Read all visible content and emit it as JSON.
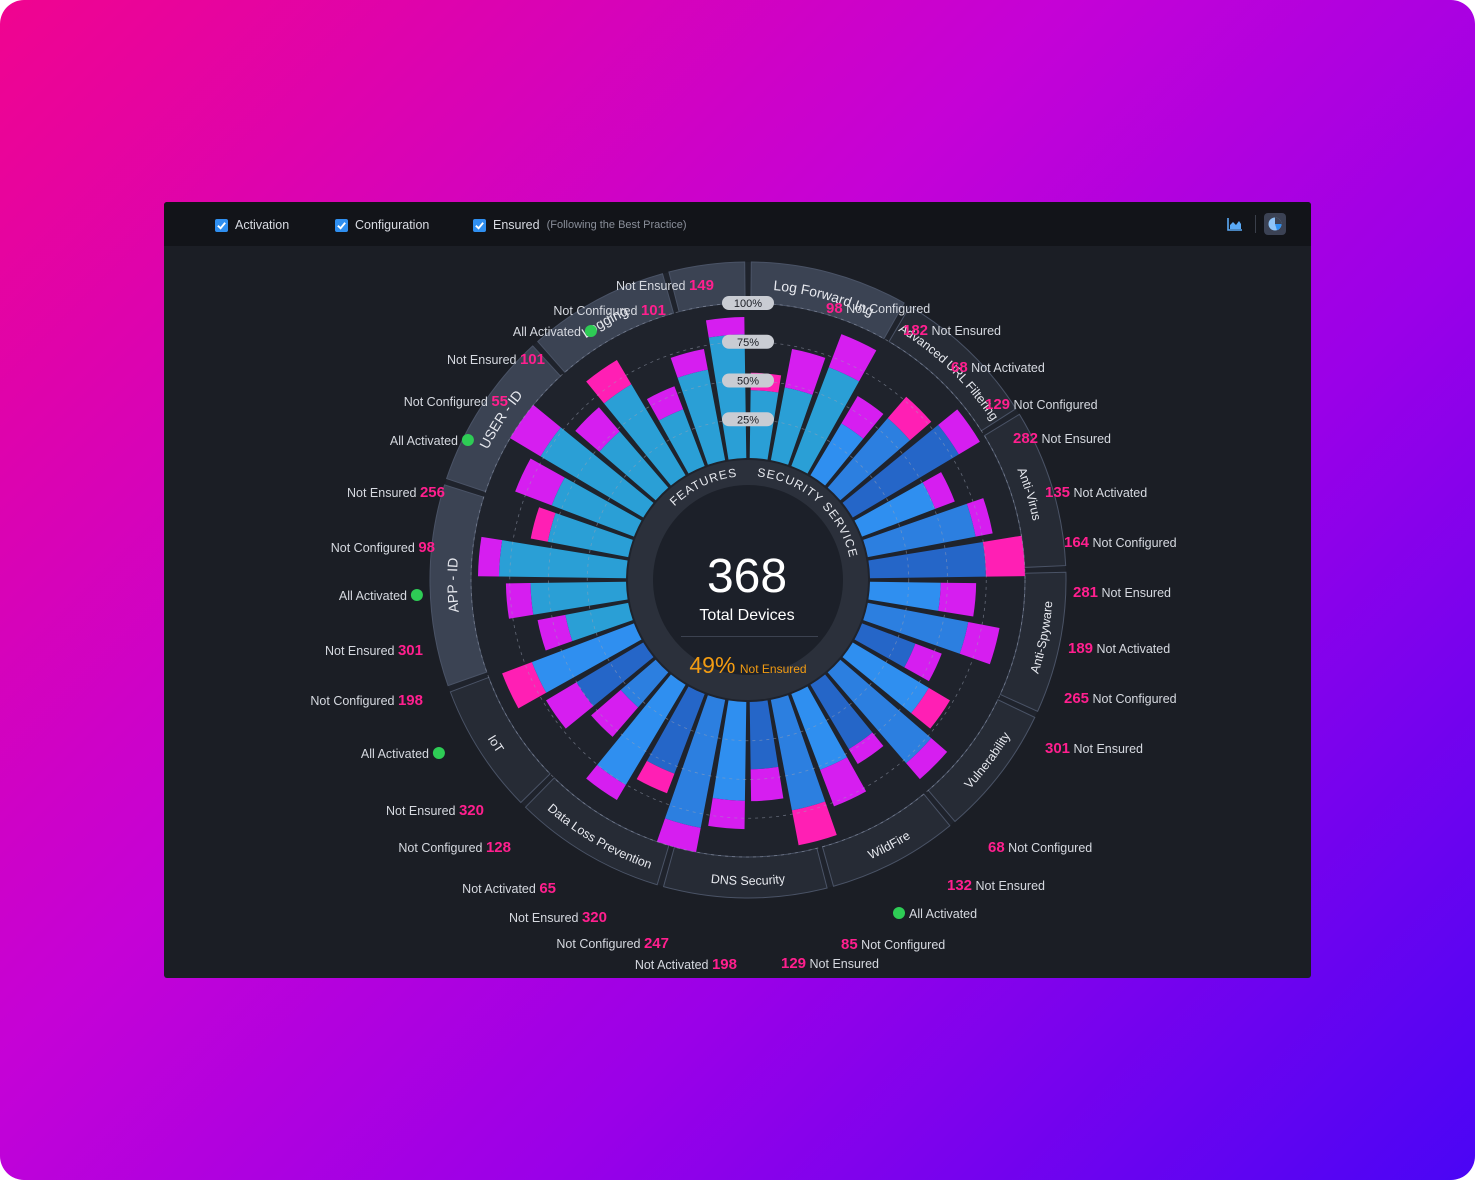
{
  "toolbar": {
    "activation": "Activation",
    "configuration": "Configuration",
    "ensured": "Ensured",
    "ensured_note": "(Following the Best Practice)"
  },
  "icons": {
    "area_chart": "area-chart-icon",
    "pie_chart": "pie-chart-icon"
  },
  "colors": {
    "accent_pink": "#ff1f8e",
    "magenta": "#d61ef0",
    "blue": "#2f8ff0",
    "green": "#2ecc55",
    "orange": "#f39c12"
  },
  "center": {
    "total": "368",
    "total_label": "Total Devices",
    "percent": "49%",
    "percent_label": "Not Ensured"
  },
  "ring_labels": {
    "features": "FEATURES",
    "security": "SECURITY SERVICES"
  },
  "scale_labels": [
    "100%",
    "75%",
    "50%",
    "25%"
  ],
  "segments": [
    "Log Forward Ing",
    "Advanced URL Filtering",
    "Anti-Virus",
    "Anti-Spyware",
    "Vulnerability",
    "WildFire",
    "DNS Security",
    "Data Loss Prevention",
    "IoT",
    "APP - ID",
    "USER - ID",
    "Logging"
  ],
  "callouts": {
    "lfi_ne": {
      "text": "Not Ensured",
      "num": "149"
    },
    "lfi_nc": {
      "text": "Not Configured",
      "num": "101"
    },
    "lfi_aa": {
      "text": "All Activated"
    },
    "log_ne": {
      "text": "Not Ensured",
      "num": "101"
    },
    "log_nc": {
      "text": "Not Configured",
      "num": "55"
    },
    "log_aa": {
      "text": "All Activated"
    },
    "uid_ne": {
      "text": "Not Ensured",
      "num": "256"
    },
    "uid_nc": {
      "text": "Not Configured",
      "num": "98"
    },
    "uid_aa": {
      "text": "All Activated"
    },
    "app_ne": {
      "text": "Not Ensured",
      "num": "301"
    },
    "app_nc": {
      "text": "Not Configured",
      "num": "198"
    },
    "app_aa": {
      "text": "All Activated"
    },
    "iot_ne": {
      "text": "Not Ensured",
      "num": "320"
    },
    "iot_nc": {
      "text": "Not Configured",
      "num": "128"
    },
    "iot_na": {
      "text": "Not Activated",
      "num": "65"
    },
    "dlp_ne": {
      "text": "Not Ensured",
      "num": "320"
    },
    "dlp_nc": {
      "text": "Not Configured",
      "num": "247"
    },
    "dlp_na": {
      "text": "Not Activated",
      "num": "198"
    },
    "url_nc": {
      "text": "Not Configured",
      "num": "98"
    },
    "url_ne": {
      "text": "Not Ensured",
      "num": "182"
    },
    "av_na": {
      "text": "Not Activated",
      "num": "68"
    },
    "av_nc": {
      "text": "Not Configured",
      "num": "129"
    },
    "av_ne": {
      "text": "Not Ensured",
      "num": "282"
    },
    "as_na": {
      "text": "Not Activated",
      "num": "135"
    },
    "as_nc": {
      "text": "Not Configured",
      "num": "164"
    },
    "as_ne": {
      "text": "Not Ensured",
      "num": "281"
    },
    "vul_na": {
      "text": "Not Activated",
      "num": "189"
    },
    "vul_nc": {
      "text": "Not Configured",
      "num": "265"
    },
    "vul_ne": {
      "text": "Not Ensured",
      "num": "301"
    },
    "wf_nc": {
      "text": "Not Configured",
      "num": "68"
    },
    "wf_ne": {
      "text": "Not Ensured",
      "num": "132"
    },
    "dns_aa": {
      "text": "All Activated"
    },
    "dns_nc": {
      "text": "Not Configured",
      "num": "85"
    },
    "dns_ne": {
      "text": "Not Ensured",
      "num": "129"
    }
  }
}
